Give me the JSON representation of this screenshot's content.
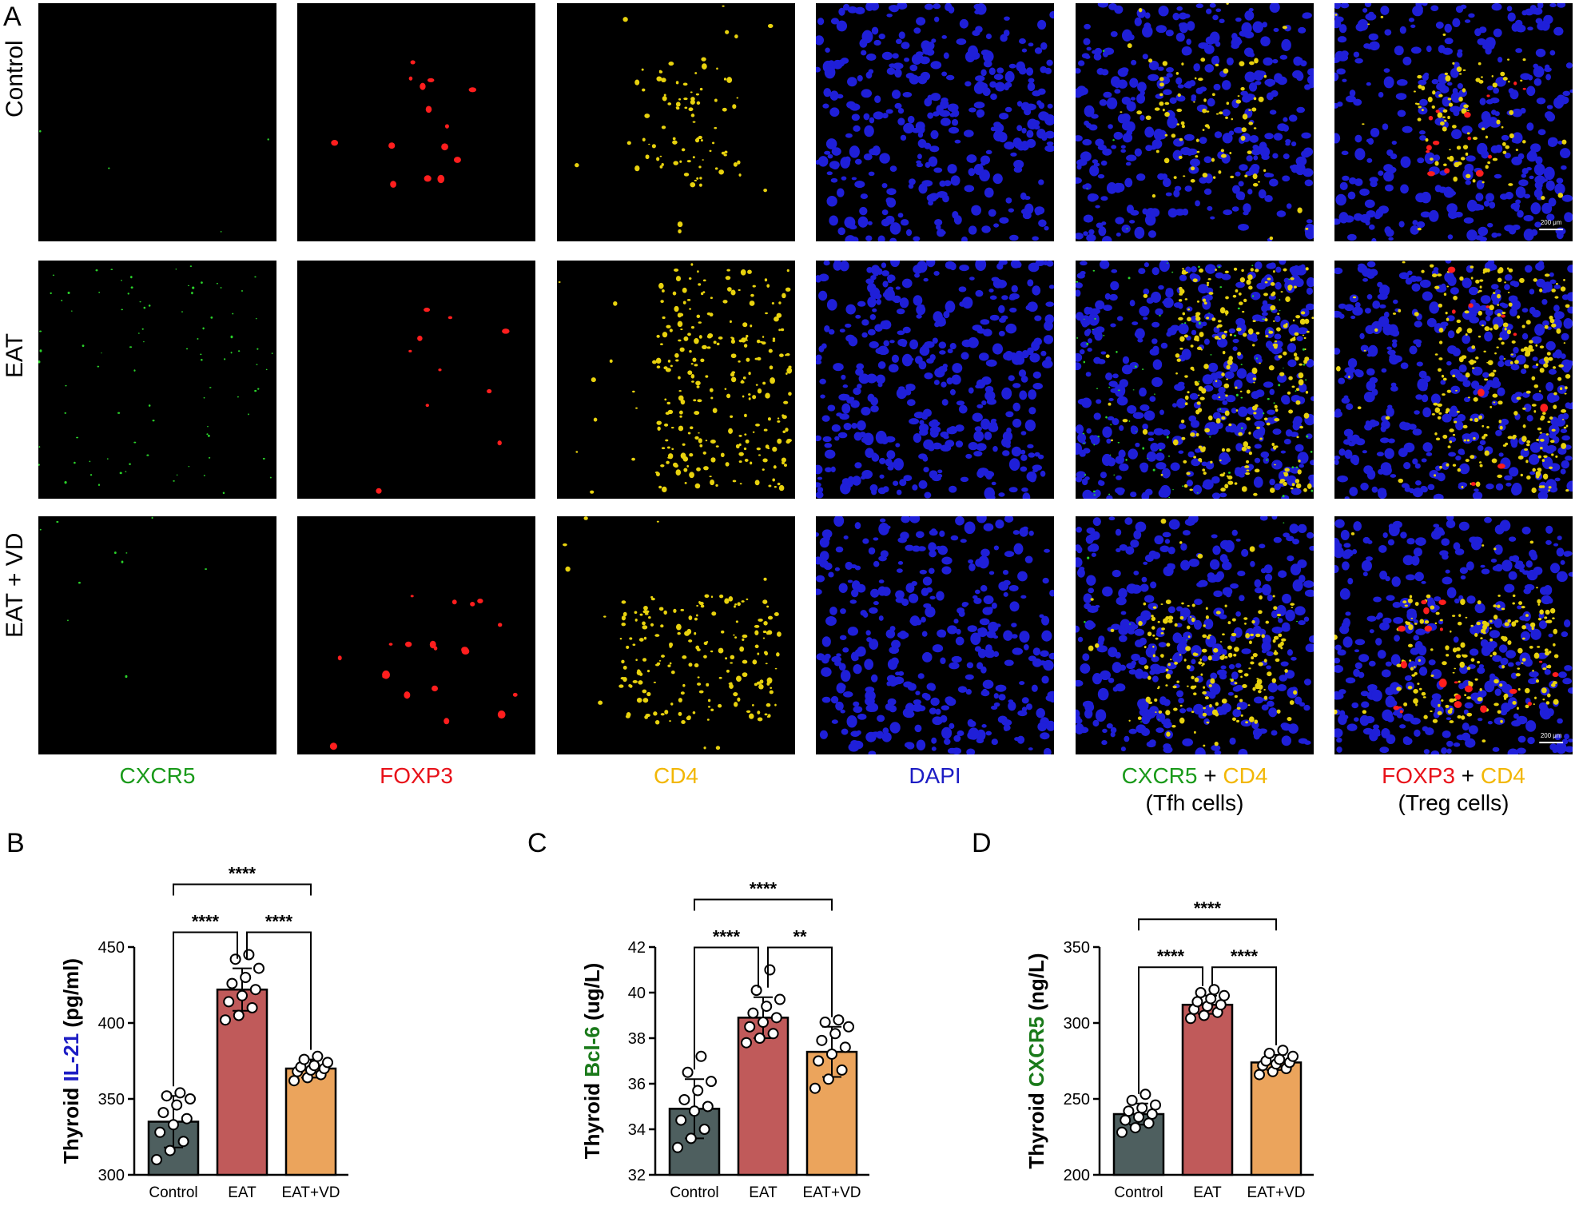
{
  "panel_a": {
    "letter": "A",
    "rows": [
      "Control",
      "EAT",
      "EAT + VD"
    ],
    "columns": [
      {
        "parts": [
          {
            "text": "CXCR5",
            "color": "#1a9a1a"
          }
        ],
        "caption": ""
      },
      {
        "parts": [
          {
            "text": "FOXP3",
            "color": "#e8121a"
          }
        ],
        "caption": ""
      },
      {
        "parts": [
          {
            "text": "CD4",
            "color": "#f2b705"
          }
        ],
        "caption": ""
      },
      {
        "parts": [
          {
            "text": "DAPI",
            "color": "#1d1dc4"
          }
        ],
        "caption": ""
      },
      {
        "parts": [
          {
            "text": "CXCR5",
            "color": "#1a9a1a"
          },
          {
            "text": " + ",
            "color": "#000000"
          },
          {
            "text": "CD4",
            "color": "#f2b705"
          }
        ],
        "caption": "(Tfh cells)"
      },
      {
        "parts": [
          {
            "text": "FOXP3",
            "color": "#e8121a"
          },
          {
            "text": " + ",
            "color": "#000000"
          },
          {
            "text": "CD4",
            "color": "#f2b705"
          }
        ],
        "caption": "(Treg cells)"
      }
    ],
    "scale_bar_label": "200 μm"
  },
  "chart_data": [
    {
      "panel": "B",
      "type": "bar",
      "ylabel_parts": [
        {
          "text": "Thyroid ",
          "color": "#000000"
        },
        {
          "text": "IL-21",
          "color": "#1d1dc4"
        },
        {
          "text": " (pg/ml)",
          "color": "#000000"
        }
      ],
      "categories": [
        "Control",
        "EAT",
        "EAT+VD"
      ],
      "values": [
        335,
        422,
        370
      ],
      "errors": [
        17,
        14,
        6
      ],
      "points": [
        [
          310,
          316,
          322,
          328,
          333,
          337,
          341,
          346,
          350,
          352,
          354
        ],
        [
          402,
          405,
          410,
          414,
          418,
          422,
          426,
          430,
          436,
          442,
          445
        ],
        [
          362,
          364,
          366,
          368,
          369,
          370,
          371,
          372,
          374,
          376,
          378
        ]
      ],
      "bar_colors": [
        "#4e5f5f",
        "#c05a5a",
        "#eba45c"
      ],
      "ylim": [
        300,
        450
      ],
      "yticks": [
        300,
        350,
        400,
        450
      ],
      "significance": [
        {
          "from": 0,
          "to": 1,
          "label": "****"
        },
        {
          "from": 1,
          "to": 2,
          "label": "****"
        },
        {
          "from": 0,
          "to": 2,
          "label": "****"
        }
      ]
    },
    {
      "panel": "C",
      "type": "bar",
      "ylabel_parts": [
        {
          "text": "Thyroid ",
          "color": "#000000"
        },
        {
          "text": "Bcl-6",
          "color": "#1a7a1a"
        },
        {
          "text": " (ug/L)",
          "color": "#000000"
        }
      ],
      "categories": [
        "Control",
        "EAT",
        "EAT+VD"
      ],
      "values": [
        34.9,
        38.9,
        37.4
      ],
      "errors": [
        1.3,
        0.9,
        1.1
      ],
      "points": [
        [
          33.2,
          33.6,
          34.0,
          34.4,
          34.8,
          35.0,
          35.3,
          35.7,
          36.1,
          36.5,
          37.2
        ],
        [
          37.8,
          38.0,
          38.2,
          38.5,
          38.7,
          38.9,
          39.1,
          39.4,
          39.7,
          40.1,
          41.0
        ],
        [
          35.8,
          36.2,
          36.6,
          37.0,
          37.3,
          37.6,
          37.9,
          38.2,
          38.5,
          38.7,
          38.8
        ]
      ],
      "bar_colors": [
        "#4e5f5f",
        "#c05a5a",
        "#eba45c"
      ],
      "ylim": [
        32,
        42
      ],
      "yticks": [
        32,
        34,
        36,
        38,
        40,
        42
      ],
      "significance": [
        {
          "from": 0,
          "to": 1,
          "label": "****"
        },
        {
          "from": 1,
          "to": 2,
          "label": "**"
        },
        {
          "from": 0,
          "to": 2,
          "label": "****"
        }
      ]
    },
    {
      "panel": "D",
      "type": "bar",
      "ylabel_parts": [
        {
          "text": "Thyroid ",
          "color": "#000000"
        },
        {
          "text": "CXCR5",
          "color": "#1a7a1a"
        },
        {
          "text": " (ng/L)",
          "color": "#000000"
        }
      ],
      "categories": [
        "Control",
        "EAT",
        "EAT+VD"
      ],
      "values": [
        240,
        312,
        274
      ],
      "errors": [
        7,
        6,
        5
      ],
      "points": [
        [
          228,
          231,
          234,
          236,
          238,
          240,
          242,
          244,
          246,
          249,
          253
        ],
        [
          303,
          305,
          307,
          309,
          311,
          312,
          314,
          316,
          318,
          320,
          322
        ],
        [
          266,
          268,
          270,
          272,
          273,
          274,
          275,
          276,
          278,
          280,
          282
        ]
      ],
      "bar_colors": [
        "#4e5f5f",
        "#c05a5a",
        "#eba45c"
      ],
      "ylim": [
        200,
        350
      ],
      "yticks": [
        200,
        250,
        300,
        350
      ],
      "significance": [
        {
          "from": 0,
          "to": 1,
          "label": "****"
        },
        {
          "from": 1,
          "to": 2,
          "label": "****"
        },
        {
          "from": 0,
          "to": 2,
          "label": "****"
        }
      ]
    }
  ]
}
